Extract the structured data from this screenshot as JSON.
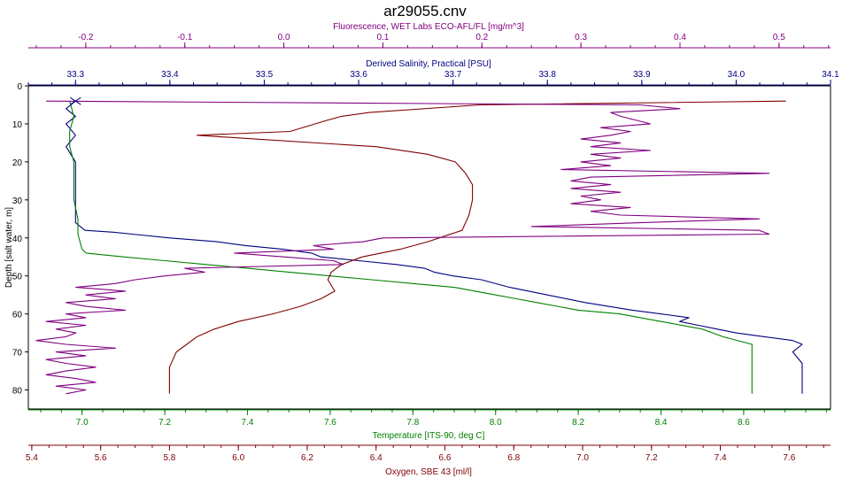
{
  "chart_data": {
    "type": "line",
    "title": "ar29055.cnv",
    "y_axis": {
      "label": "Depth [salt water, m]",
      "range": [
        0,
        85
      ],
      "ticks": [
        0,
        10,
        20,
        30,
        40,
        50,
        60,
        70,
        80
      ],
      "color": "#000000",
      "inverted": true
    },
    "top_axes": [
      {
        "id": "fluorescence",
        "label": "Fluorescence, WET Labs ECO-AFL/FL [mg/m^3]",
        "color": "#800080",
        "range": [
          -0.258,
          0.552
        ],
        "ticks": [
          "-0.2",
          "-0.1",
          "0.0",
          "0.1",
          "0.2",
          "0.3",
          "0.4",
          "0.5"
        ],
        "tick_values": [
          -0.2,
          -0.1,
          0.0,
          0.1,
          0.2,
          0.3,
          0.4,
          0.5
        ]
      },
      {
        "id": "salinity",
        "label": "Derived Salinity, Practical [PSU]",
        "color": "#000080",
        "range": [
          33.25,
          34.1
        ],
        "ticks": [
          "33.3",
          "33.4",
          "33.5",
          "33.6",
          "33.7",
          "33.8",
          "33.9",
          "34.0",
          "34.1"
        ],
        "tick_values": [
          33.3,
          33.4,
          33.5,
          33.6,
          33.7,
          33.8,
          33.9,
          34.0,
          34.1
        ]
      }
    ],
    "bottom_axes": [
      {
        "id": "temperature",
        "label": "Temperature [ITS-90, deg C]",
        "color": "#008000",
        "range": [
          6.87,
          8.81
        ],
        "ticks": [
          "7.0",
          "7.2",
          "7.4",
          "7.6",
          "7.8",
          "8.0",
          "8.2",
          "8.4",
          "8.6"
        ],
        "tick_values": [
          7.0,
          7.2,
          7.4,
          7.6,
          7.8,
          8.0,
          8.2,
          8.4,
          8.6
        ]
      },
      {
        "id": "oxygen",
        "label": "Oxygen, SBE 43 [ml/l]",
        "color": "#800000",
        "range": [
          5.39,
          7.72
        ],
        "ticks": [
          "5.4",
          "5.6",
          "5.8",
          "6.0",
          "6.2",
          "6.4",
          "6.6",
          "6.8",
          "7.0",
          "7.2",
          "7.4",
          "7.6"
        ],
        "tick_values": [
          5.4,
          5.6,
          5.8,
          6.0,
          6.2,
          6.4,
          6.6,
          6.8,
          7.0,
          7.2,
          7.4,
          7.6
        ]
      }
    ],
    "series": [
      {
        "id": "salinity",
        "color": "#000080",
        "points": [
          [
            4,
            33.3
          ],
          [
            6,
            33.29
          ],
          [
            8,
            33.3
          ],
          [
            10,
            33.29
          ],
          [
            13,
            33.3
          ],
          [
            16,
            33.29
          ],
          [
            20,
            33.3
          ],
          [
            24,
            33.3
          ],
          [
            28,
            33.3
          ],
          [
            32,
            33.3
          ],
          [
            36,
            33.3
          ],
          [
            38,
            33.31
          ],
          [
            38.5,
            33.34
          ],
          [
            39,
            33.36
          ],
          [
            40,
            33.4
          ],
          [
            41,
            33.45
          ],
          [
            42,
            33.48
          ],
          [
            43,
            33.52
          ],
          [
            44,
            33.55
          ],
          [
            45,
            33.56
          ],
          [
            46,
            33.6
          ],
          [
            47,
            33.64
          ],
          [
            48,
            33.67
          ],
          [
            49,
            33.68
          ],
          [
            50,
            33.7
          ],
          [
            51,
            33.73
          ],
          [
            53,
            33.76
          ],
          [
            55,
            33.8
          ],
          [
            57,
            33.84
          ],
          [
            59,
            33.89
          ],
          [
            60,
            33.92
          ],
          [
            61,
            33.95
          ],
          [
            62,
            33.94
          ],
          [
            63,
            33.96
          ],
          [
            64,
            33.98
          ],
          [
            65,
            34.0
          ],
          [
            66,
            34.03
          ],
          [
            67,
            34.06
          ],
          [
            68,
            34.07
          ],
          [
            70,
            34.06
          ],
          [
            73,
            34.07
          ],
          [
            76,
            34.07
          ],
          [
            78,
            34.07
          ],
          [
            81,
            34.07
          ]
        ]
      },
      {
        "id": "temperature",
        "color": "#008000",
        "points": [
          [
            4,
            6.97
          ],
          [
            8,
            6.98
          ],
          [
            12,
            6.97
          ],
          [
            16,
            6.97
          ],
          [
            20,
            6.98
          ],
          [
            25,
            6.98
          ],
          [
            30,
            6.98
          ],
          [
            35,
            6.99
          ],
          [
            39,
            6.99
          ],
          [
            43,
            7.0
          ],
          [
            44,
            7.01
          ],
          [
            45,
            7.1
          ],
          [
            46,
            7.2
          ],
          [
            47,
            7.3
          ],
          [
            48,
            7.4
          ],
          [
            49,
            7.5
          ],
          [
            50,
            7.6
          ],
          [
            51,
            7.7
          ],
          [
            52,
            7.8
          ],
          [
            53,
            7.9
          ],
          [
            55,
            8.0
          ],
          [
            56,
            8.05
          ],
          [
            57,
            8.1
          ],
          [
            59,
            8.2
          ],
          [
            60,
            8.3
          ],
          [
            62,
            8.4
          ],
          [
            64,
            8.5
          ],
          [
            66,
            8.55
          ],
          [
            68,
            8.62
          ],
          [
            70,
            8.62
          ],
          [
            73,
            8.62
          ],
          [
            76,
            8.62
          ],
          [
            78,
            8.62
          ],
          [
            81,
            8.62
          ]
        ]
      },
      {
        "id": "oxygen",
        "color": "#800000",
        "points": [
          [
            4,
            7.59
          ],
          [
            5,
            6.7
          ],
          [
            7,
            6.38
          ],
          [
            8,
            6.3
          ],
          [
            9,
            6.26
          ],
          [
            12,
            6.15
          ],
          [
            13,
            5.88
          ],
          [
            14,
            6.05
          ],
          [
            16,
            6.4
          ],
          [
            18,
            6.55
          ],
          [
            20,
            6.63
          ],
          [
            23,
            6.66
          ],
          [
            26,
            6.68
          ],
          [
            30,
            6.68
          ],
          [
            34,
            6.67
          ],
          [
            38,
            6.65
          ],
          [
            41,
            6.55
          ],
          [
            43,
            6.47
          ],
          [
            45,
            6.36
          ],
          [
            47,
            6.3
          ],
          [
            49,
            6.27
          ],
          [
            51,
            6.26
          ],
          [
            54,
            6.28
          ],
          [
            56,
            6.24
          ],
          [
            58,
            6.18
          ],
          [
            60,
            6.1
          ],
          [
            62,
            6.0
          ],
          [
            64,
            5.93
          ],
          [
            66,
            5.88
          ],
          [
            68,
            5.85
          ],
          [
            70,
            5.82
          ],
          [
            72,
            5.81
          ],
          [
            74,
            5.8
          ],
          [
            77,
            5.8
          ],
          [
            80,
            5.8
          ],
          [
            81,
            5.8
          ]
        ]
      },
      {
        "id": "fluorescence",
        "color": "#800080",
        "points": [
          [
            4,
            -0.24
          ],
          [
            5,
            0.36
          ],
          [
            6,
            0.4
          ],
          [
            7,
            0.33
          ],
          [
            8,
            0.34
          ],
          [
            10,
            0.37
          ],
          [
            11,
            0.32
          ],
          [
            12,
            0.35
          ],
          [
            13,
            0.33
          ],
          [
            14,
            0.3
          ],
          [
            15,
            0.34
          ],
          [
            16,
            0.31
          ],
          [
            17,
            0.37
          ],
          [
            18,
            0.31
          ],
          [
            19,
            0.34
          ],
          [
            20,
            0.3
          ],
          [
            21,
            0.33
          ],
          [
            22,
            0.28
          ],
          [
            23,
            0.49
          ],
          [
            24,
            0.31
          ],
          [
            25,
            0.29
          ],
          [
            26,
            0.33
          ],
          [
            27,
            0.29
          ],
          [
            28,
            0.34
          ],
          [
            29,
            0.3
          ],
          [
            30,
            0.32
          ],
          [
            31,
            0.29
          ],
          [
            32,
            0.35
          ],
          [
            33,
            0.31
          ],
          [
            34,
            0.34
          ],
          [
            35,
            0.48
          ],
          [
            36,
            0.36
          ],
          [
            37,
            0.25
          ],
          [
            38,
            0.48
          ],
          [
            39,
            0.49
          ],
          [
            40,
            0.1
          ],
          [
            41,
            0.08
          ],
          [
            42,
            0.03
          ],
          [
            43,
            0.05
          ],
          [
            44,
            -0.05
          ],
          [
            45,
            0.0
          ],
          [
            46,
            0.05
          ],
          [
            47,
            0.06
          ],
          [
            48,
            -0.1
          ],
          [
            49,
            -0.08
          ],
          [
            50,
            -0.12
          ],
          [
            51,
            -0.15
          ],
          [
            52,
            -0.17
          ],
          [
            53,
            -0.21
          ],
          [
            54,
            -0.16
          ],
          [
            55,
            -0.2
          ],
          [
            56,
            -0.17
          ],
          [
            57,
            -0.22
          ],
          [
            58,
            -0.2
          ],
          [
            59,
            -0.16
          ],
          [
            60,
            -0.22
          ],
          [
            61,
            -0.2
          ],
          [
            62,
            -0.24
          ],
          [
            63,
            -0.2
          ],
          [
            64,
            -0.23
          ],
          [
            65,
            -0.21
          ],
          [
            66,
            -0.22
          ],
          [
            67,
            -0.25
          ],
          [
            68,
            -0.22
          ],
          [
            69,
            -0.17
          ],
          [
            70,
            -0.23
          ],
          [
            71,
            -0.2
          ],
          [
            72,
            -0.24
          ],
          [
            73,
            -0.22
          ],
          [
            74,
            -0.19
          ],
          [
            75,
            -0.22
          ],
          [
            76,
            -0.24
          ],
          [
            77,
            -0.21
          ],
          [
            78,
            -0.19
          ],
          [
            79,
            -0.23
          ],
          [
            80,
            -0.2
          ],
          [
            81,
            -0.22
          ]
        ]
      }
    ]
  }
}
